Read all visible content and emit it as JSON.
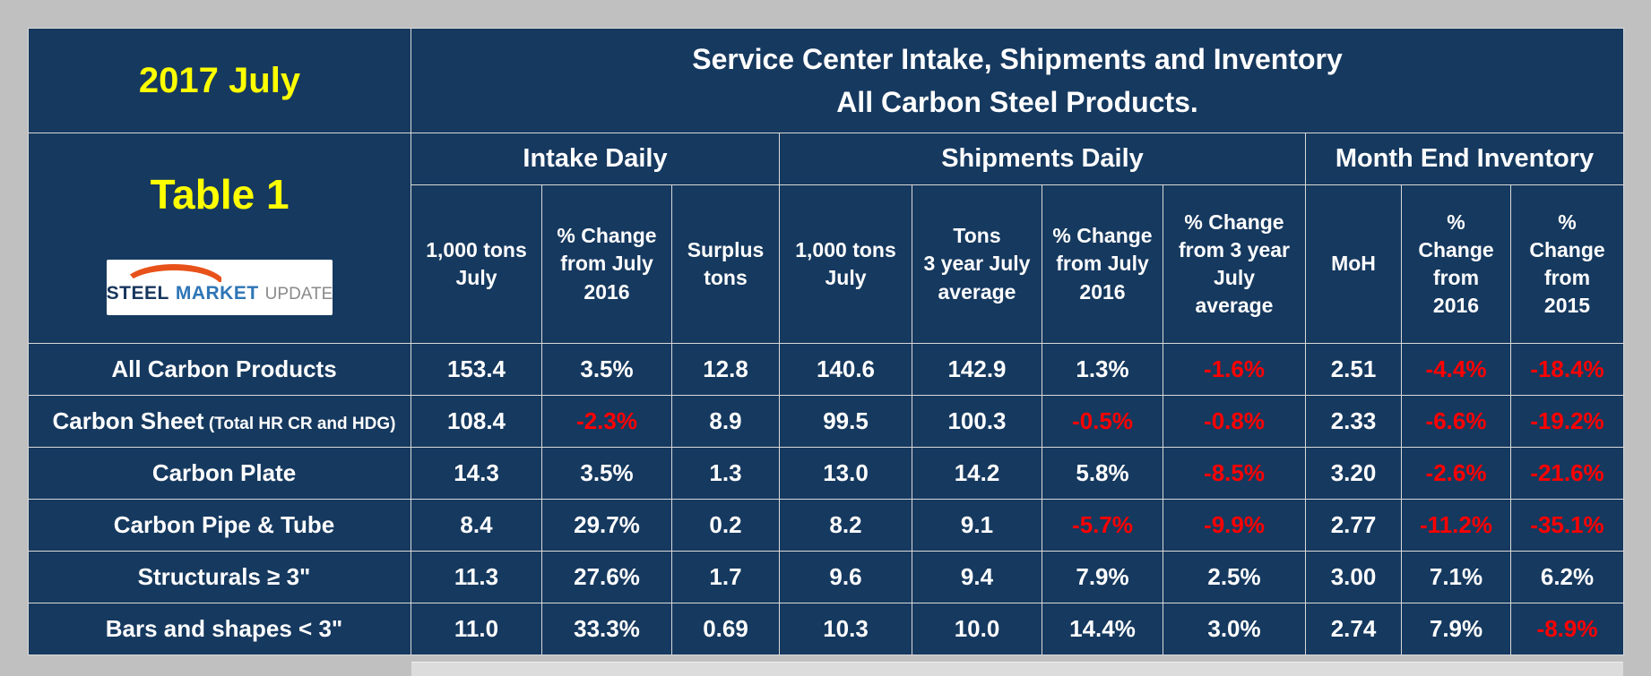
{
  "meta": {
    "date_label": "2017 July",
    "table_label": "Table 1",
    "title_line1": "Service Center Intake, Shipments and Inventory",
    "title_line2": "All Carbon Steel Products.",
    "logo_steel": "STEEL",
    "logo_market": "MARKET",
    "logo_update": "UPDATE"
  },
  "colors": {
    "background": "#c0c0c0",
    "table_bg": "#16395f",
    "grid_line": "#d9d9d9",
    "accent_yellow": "#ffff00",
    "text_white": "#ffffff",
    "negative_red": "#ff0000",
    "logo_orange": "#e8521a"
  },
  "table": {
    "header_labels": [
      "1,000 tons\nJuly",
      "% Change\nfrom July\n2016",
      "Surplus\ntons",
      "1,000 tons\nJuly",
      "Tons\n3 year July\naverage",
      "% Change\nfrom July\n2016",
      "% Change\nfrom 3 year\nJuly\naverage",
      "MoH",
      "%\nChange\nfrom\n2016",
      "%\nChange\nfrom\n2015"
    ]
  },
  "chart_data": {
    "type": "table",
    "title": "Service Center Intake, Shipments and Inventory All Carbon Steel Products. (2017 July, Table 1)",
    "column_groups": [
      {
        "label": "Intake Daily",
        "span": 3
      },
      {
        "label": "Shipments Daily",
        "span": 4
      },
      {
        "label": "Month End Inventory",
        "span": 3
      }
    ],
    "columns": [
      "1,000 tons July",
      "% Change from July 2016",
      "Surplus tons",
      "1,000 tons July",
      "Tons 3 year July average",
      "% Change from July 2016",
      "% Change from 3 year July average",
      "MoH",
      "% Change from 2016",
      "% Change from 2015"
    ],
    "rows": [
      {
        "product": "All Carbon Products",
        "product_note": "",
        "values": [
          "153.4",
          "3.5%",
          "12.8",
          "140.6",
          "142.9",
          "1.3%",
          "-1.6%",
          "2.51",
          "-4.4%",
          "-18.4%"
        ]
      },
      {
        "product": "Carbon Sheet",
        "product_note": "(Total HR CR and HDG)",
        "values": [
          "108.4",
          "-2.3%",
          "8.9",
          "99.5",
          "100.3",
          "-0.5%",
          "-0.8%",
          "2.33",
          "-6.6%",
          "-19.2%"
        ]
      },
      {
        "product": "Carbon Plate",
        "product_note": "",
        "values": [
          "14.3",
          "3.5%",
          "1.3",
          "13.0",
          "14.2",
          "5.8%",
          "-8.5%",
          "3.20",
          "-2.6%",
          "-21.6%"
        ]
      },
      {
        "product": "Carbon Pipe & Tube",
        "product_note": "",
        "values": [
          "8.4",
          "29.7%",
          "0.2",
          "8.2",
          "9.1",
          "-5.7%",
          "-9.9%",
          "2.77",
          "-11.2%",
          "-35.1%"
        ]
      },
      {
        "product": "Structurals ≥ 3\"",
        "product_note": "",
        "values": [
          "11.3",
          "27.6%",
          "1.7",
          "9.6",
          "9.4",
          "7.9%",
          "2.5%",
          "3.00",
          "7.1%",
          "6.2%"
        ]
      },
      {
        "product": "Bars and shapes < 3\"",
        "product_note": "",
        "values": [
          "11.0",
          "33.3%",
          "0.69",
          "10.3",
          "10.0",
          "14.4%",
          "3.0%",
          "2.74",
          "7.9%",
          "-8.9%"
        ]
      }
    ]
  }
}
